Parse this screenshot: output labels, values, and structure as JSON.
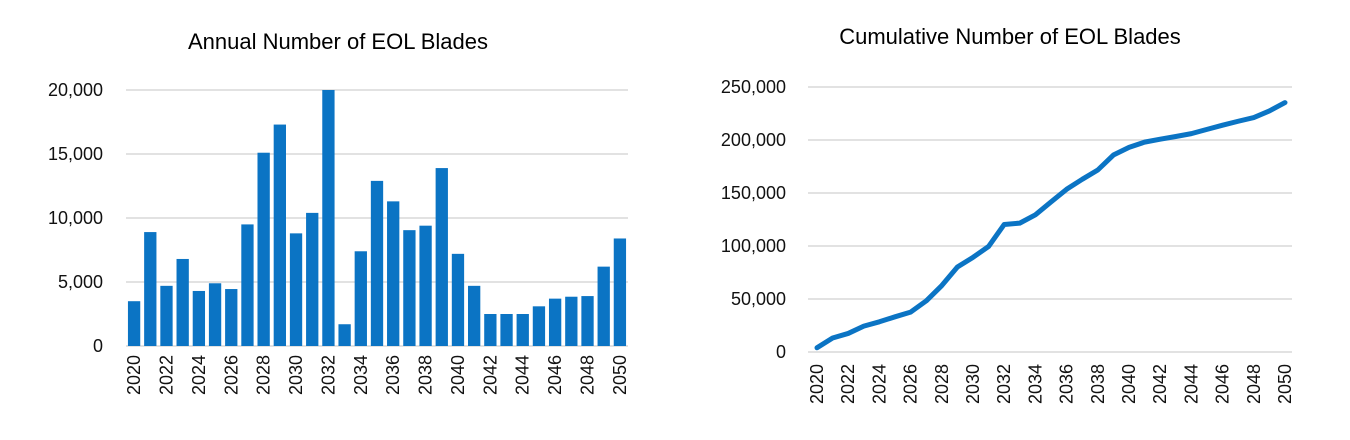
{
  "chart_data": [
    {
      "type": "bar",
      "title": "Annual Number of EOL Blades",
      "xlabel": "",
      "ylabel": "",
      "ylim": [
        0,
        20000
      ],
      "yticks": [
        "0",
        "5,000",
        "10,000",
        "15,000",
        "20,000"
      ],
      "grid": true,
      "color": "#0b74c4",
      "categories": [
        2020,
        2021,
        2022,
        2023,
        2024,
        2025,
        2026,
        2027,
        2028,
        2029,
        2030,
        2031,
        2032,
        2033,
        2034,
        2035,
        2036,
        2037,
        2038,
        2039,
        2040,
        2041,
        2042,
        2043,
        2044,
        2045,
        2046,
        2047,
        2048,
        2049,
        2050
      ],
      "xtick_labels": [
        "2020",
        "2022",
        "2024",
        "2026",
        "2028",
        "2030",
        "2032",
        "2034",
        "2036",
        "2038",
        "2040",
        "2042",
        "2044",
        "2046",
        "2048",
        "2050"
      ],
      "values": [
        3500,
        8900,
        4700,
        6800,
        4300,
        4900,
        4450,
        9500,
        15100,
        17300,
        8800,
        10400,
        20000,
        1700,
        7400,
        12900,
        11300,
        9050,
        9400,
        13900,
        7200,
        4700,
        2500,
        2500,
        2500,
        3100,
        3700,
        3850,
        3900,
        6200,
        8400
      ]
    },
    {
      "type": "line",
      "title": "Cumulative Number of EOL Blades",
      "xlabel": "",
      "ylabel": "",
      "ylim": [
        0,
        250000
      ],
      "yticks": [
        "0",
        "50,000",
        "100,000",
        "150,000",
        "200,000",
        "250,000"
      ],
      "grid": true,
      "color": "#0b74c4",
      "x": [
        2020,
        2021,
        2022,
        2023,
        2024,
        2025,
        2026,
        2027,
        2028,
        2029,
        2030,
        2031,
        2032,
        2033,
        2034,
        2035,
        2036,
        2037,
        2038,
        2039,
        2040,
        2041,
        2042,
        2043,
        2044,
        2045,
        2046,
        2047,
        2048,
        2049,
        2050
      ],
      "xtick_labels": [
        "2020",
        "2022",
        "2024",
        "2026",
        "2028",
        "2030",
        "2032",
        "2034",
        "2036",
        "2038",
        "2040",
        "2042",
        "2044",
        "2046",
        "2048",
        "2050"
      ],
      "values": [
        4000,
        13200,
        17500,
        24400,
        28500,
        33200,
        37600,
        48200,
        62700,
        80200,
        89300,
        99600,
        120300,
        121600,
        129400,
        141600,
        153500,
        162900,
        171700,
        185800,
        193000,
        198000,
        200800,
        203300,
        206000,
        210000,
        214000,
        217700,
        221200,
        227400,
        235300
      ]
    }
  ]
}
